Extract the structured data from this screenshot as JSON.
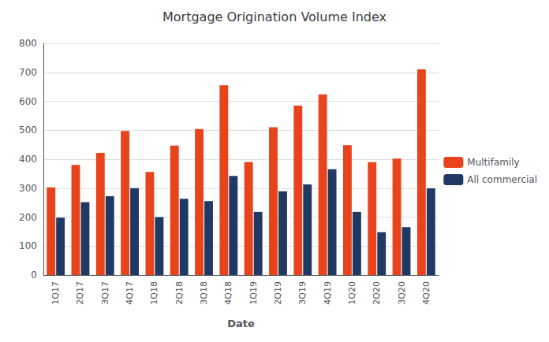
{
  "chart_data": {
    "type": "bar",
    "title": "Mortgage Origination Volume Index",
    "xlabel": "Date",
    "categories": [
      "1Q17",
      "2Q17",
      "3Q17",
      "4Q17",
      "1Q18",
      "2Q18",
      "3Q18",
      "4Q18",
      "1Q19",
      "2Q19",
      "3Q19",
      "4Q19",
      "1Q20",
      "2Q20",
      "3Q20",
      "4Q20"
    ],
    "series": [
      {
        "name": "Multifamily",
        "color": "#E8431A",
        "values": [
          303,
          380,
          422,
          497,
          356,
          447,
          504,
          655,
          390,
          510,
          585,
          624,
          448,
          390,
          402,
          710
        ]
      },
      {
        "name": "All commercial",
        "color": "#1F3864",
        "values": [
          198,
          252,
          272,
          300,
          200,
          263,
          255,
          342,
          218,
          289,
          313,
          365,
          218,
          148,
          165,
          299
        ]
      }
    ],
    "ylim": [
      0,
      800
    ],
    "yticks": [
      0,
      100,
      200,
      300,
      400,
      500,
      600,
      700,
      800
    ],
    "grid": true,
    "legend": "right"
  }
}
